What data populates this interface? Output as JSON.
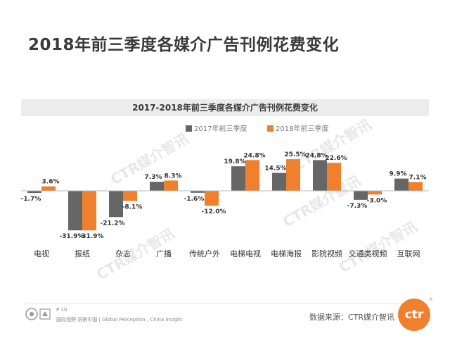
{
  "slide_title": "2018年前三季度各媒介广告刊例花费变化",
  "watermark": "CTR媒介智讯",
  "footer": {
    "page": "P 10",
    "tagline": "国际视野 洞察中国 | Global Perception , China Insight",
    "source": "数据来源：CTR媒介智讯",
    "logo_text": "ctr",
    "logo_mark": "®"
  },
  "colors": {
    "series_2017": "#666666",
    "series_2018": "#f07f2e"
  },
  "chart_data": {
    "type": "bar",
    "title": "2017-2018年前三季度各媒介广告刊例花费变化",
    "categories": [
      "电视",
      "报纸",
      "杂志",
      "广播",
      "传统户外",
      "电梯电视",
      "电梯海报",
      "影院视频",
      "交通类视频",
      "互联网"
    ],
    "series": [
      {
        "name": "2017年前三季度",
        "values": [
          -1.7,
          -31.9,
          -21.2,
          7.3,
          -1.6,
          19.8,
          14.5,
          24.8,
          -7.3,
          9.9
        ],
        "labels": [
          "-1.7%",
          "-31.9%",
          "-21.2%",
          "7.3%",
          "-1.6%",
          "19.8%",
          "14.5%",
          "24.8%",
          "-7.3%",
          "9.9%"
        ]
      },
      {
        "name": "2018年前三季度",
        "values": [
          3.6,
          -31.9,
          -8.1,
          8.3,
          -12.0,
          24.8,
          25.5,
          22.6,
          -3.0,
          7.1
        ],
        "labels": [
          "3.6%",
          "-31.9%",
          "-8.1%",
          "8.3%",
          "-12.0%",
          "24.8%",
          "25.5%",
          "22.6%",
          "-3.0%",
          "7.1%"
        ]
      }
    ],
    "ylim": [
      -32,
      26
    ],
    "legend_position": "top-center",
    "grid": false
  }
}
